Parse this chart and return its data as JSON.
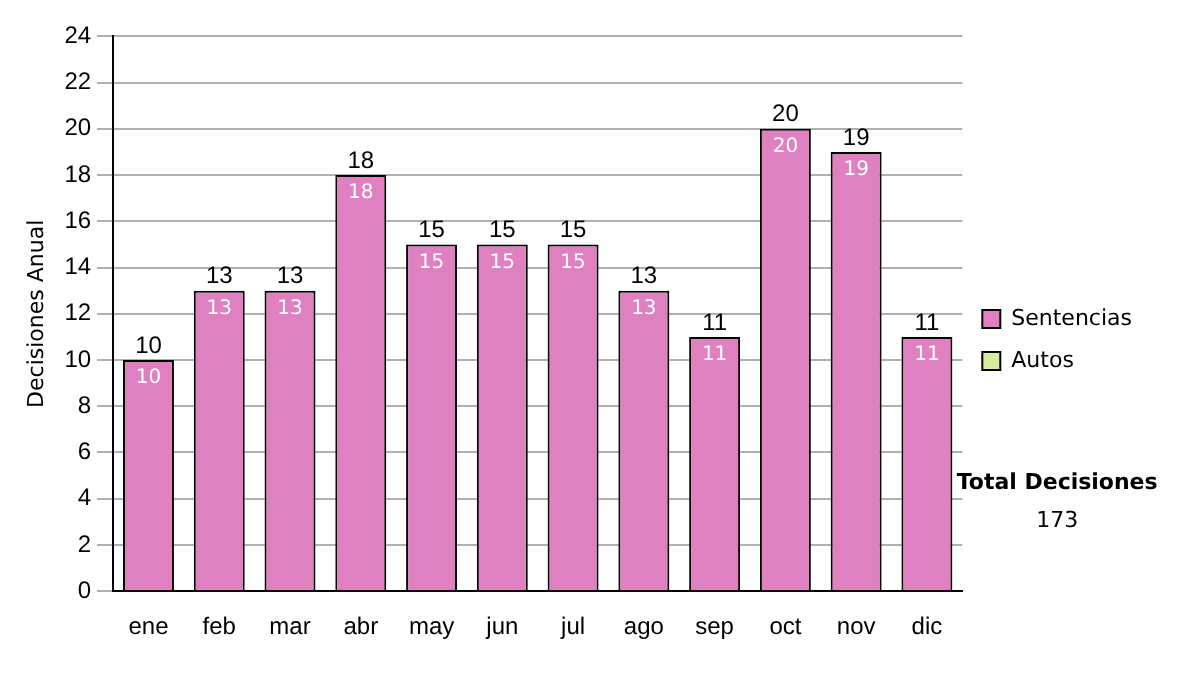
{
  "chart_data": {
    "type": "bar",
    "ylabel": "Decisiones Anual",
    "categories": [
      "ene",
      "feb",
      "mar",
      "abr",
      "may",
      "jun",
      "jul",
      "ago",
      "sep",
      "oct",
      "nov",
      "dic"
    ],
    "series": [
      {
        "name": "Sentencias",
        "color": "#df80c0",
        "values": [
          10,
          13,
          13,
          18,
          15,
          15,
          15,
          13,
          11,
          20,
          19,
          11
        ]
      },
      {
        "name": "Autos",
        "color": "#d8eca0",
        "values": [
          null,
          null,
          null,
          null,
          null,
          null,
          null,
          null,
          null,
          null,
          null,
          null
        ]
      }
    ],
    "stacked": true,
    "totals": [
      "10",
      "13",
      "13",
      "18",
      "15",
      "15",
      "15",
      "13",
      "11",
      "20",
      "19",
      "11"
    ],
    "data_labels": true,
    "ylim": [
      0,
      24
    ],
    "yticks": [
      0,
      2,
      4,
      6,
      8,
      10,
      12,
      14,
      16,
      18,
      20,
      22,
      24
    ],
    "grid": "y",
    "legend": "right",
    "annotations": [
      "Total Decisiones",
      "173"
    ]
  }
}
